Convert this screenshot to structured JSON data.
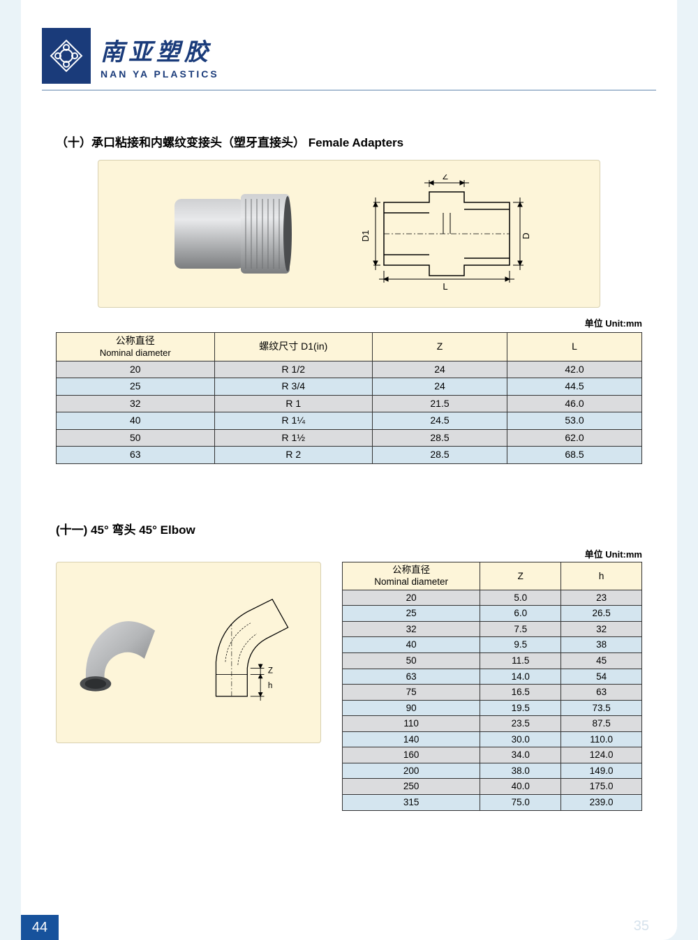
{
  "brand": {
    "cn": "南亚塑胶",
    "en": "NAN YA PLASTICS",
    "logo_bg": "#1a3b7a",
    "logo_stroke": "#ffffff"
  },
  "colors": {
    "page_bg": "#eaf3f8",
    "figure_bg": "#fdf5d9",
    "row_odd": "#dbdcde",
    "row_even": "#d4e5ef",
    "header_bg": "#fdf5d9",
    "border": "#333333",
    "accent": "#17529c"
  },
  "section1": {
    "title": "（十）承口粘接和内螺纹变接头（塑牙直接头） Female Adapters",
    "unit_label": "单位 Unit:mm",
    "diagram_labels": {
      "Z": "Z",
      "L": "L",
      "D": "D",
      "D1": "D1"
    },
    "columns": [
      {
        "cn": "公称直径",
        "en": "Nominal diameter"
      },
      {
        "cn": "螺纹尺寸 D1(in)",
        "en": ""
      },
      {
        "cn": "Z",
        "en": ""
      },
      {
        "cn": "L",
        "en": ""
      }
    ],
    "rows": [
      [
        "20",
        "R 1/2",
        "24",
        "42.0"
      ],
      [
        "25",
        "R 3/4",
        "24",
        "44.5"
      ],
      [
        "32",
        "R 1",
        "21.5",
        "46.0"
      ],
      [
        "40",
        "R 1¼",
        "24.5",
        "53.0"
      ],
      [
        "50",
        "R 1½",
        "28.5",
        "62.0"
      ],
      [
        "63",
        "R 2",
        "28.5",
        "68.5"
      ]
    ]
  },
  "section2": {
    "title": "(十一) 45° 弯头 45° Elbow",
    "unit_label": "单位 Unit:mm",
    "diagram_labels": {
      "Z": "Z",
      "h": "h"
    },
    "columns": [
      {
        "cn": "公称直径",
        "en": "Nominal diameter"
      },
      {
        "cn": "Z",
        "en": ""
      },
      {
        "cn": "h",
        "en": ""
      }
    ],
    "rows": [
      [
        "20",
        "5.0",
        "23"
      ],
      [
        "25",
        "6.0",
        "26.5"
      ],
      [
        "32",
        "7.5",
        "32"
      ],
      [
        "40",
        "9.5",
        "38"
      ],
      [
        "50",
        "11.5",
        "45"
      ],
      [
        "63",
        "14.0",
        "54"
      ],
      [
        "75",
        "16.5",
        "63"
      ],
      [
        "90",
        "19.5",
        "73.5"
      ],
      [
        "110",
        "23.5",
        "87.5"
      ],
      [
        "140",
        "30.0",
        "110.0"
      ],
      [
        "160",
        "34.0",
        "124.0"
      ],
      [
        "200",
        "38.0",
        "149.0"
      ],
      [
        "250",
        "40.0",
        "175.0"
      ],
      [
        "315",
        "75.0",
        "239.0"
      ]
    ]
  },
  "page_number_left": "44",
  "page_number_right": "35"
}
